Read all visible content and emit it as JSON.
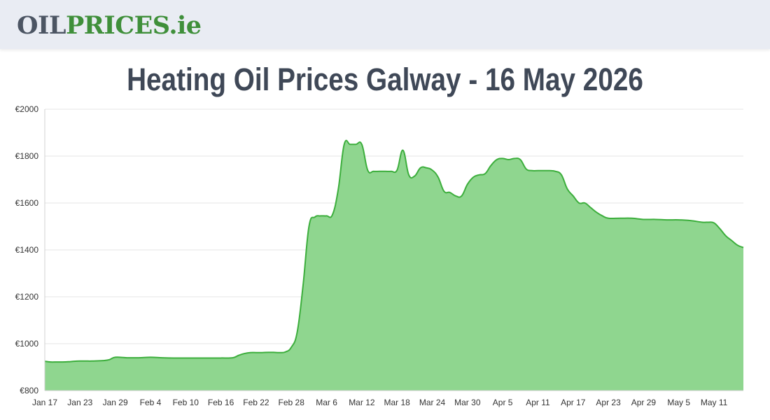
{
  "header": {
    "logo_part1": "OIL",
    "logo_part2": "PRICES",
    "logo_part3": ".ie"
  },
  "page": {
    "title": "Heating Oil Prices Galway - 16 May 2026"
  },
  "colors": {
    "header_bg": "#e9ecf3",
    "logo_gray": "#4c5563",
    "logo_green": "#3f8f3a",
    "line": "#3cae3c",
    "fill": "#8fd68f",
    "title": "#3f4857"
  },
  "chart_data": {
    "type": "area",
    "title": "",
    "xlabel": "",
    "ylabel": "",
    "ylim": [
      800,
      2000
    ],
    "y_ticks": [
      800,
      1000,
      1200,
      1400,
      1600,
      1800,
      2000
    ],
    "y_tick_labels": [
      "€800",
      "€1000",
      "€1200",
      "€1400",
      "€1600",
      "€1800",
      "€2000"
    ],
    "x_ticks": [
      {
        "day": 0,
        "label": "Jan 17"
      },
      {
        "day": 6,
        "label": "Jan 23"
      },
      {
        "day": 12,
        "label": "Jan 29"
      },
      {
        "day": 18,
        "label": "Feb 4"
      },
      {
        "day": 24,
        "label": "Feb 10"
      },
      {
        "day": 30,
        "label": "Feb 16"
      },
      {
        "day": 36,
        "label": "Feb 22"
      },
      {
        "day": 42,
        "label": "Feb 28"
      },
      {
        "day": 48,
        "label": "Mar 6"
      },
      {
        "day": 54,
        "label": "Mar 12"
      },
      {
        "day": 60,
        "label": "Mar 18"
      },
      {
        "day": 66,
        "label": "Mar 24"
      },
      {
        "day": 72,
        "label": "Mar 30"
      },
      {
        "day": 78,
        "label": "Apr 5"
      },
      {
        "day": 84,
        "label": "Apr 11"
      },
      {
        "day": 90,
        "label": "Apr 17"
      },
      {
        "day": 96,
        "label": "Apr 23"
      },
      {
        "day": 102,
        "label": "Apr 29"
      },
      {
        "day": 108,
        "label": "May 5"
      },
      {
        "day": 114,
        "label": "May 11"
      }
    ],
    "x_range": [
      0,
      119
    ],
    "grid": true,
    "legend": "none",
    "series": [
      {
        "x": [
          0,
          1,
          2,
          3,
          4,
          5,
          6,
          7,
          8,
          9,
          10,
          11,
          12,
          14,
          16,
          18,
          20,
          22,
          24,
          26,
          28,
          30,
          32,
          33,
          34,
          35,
          36,
          37,
          38,
          39,
          40,
          41,
          42,
          43,
          44,
          45,
          46,
          47,
          48,
          49,
          50,
          51,
          52,
          53,
          54,
          55,
          56,
          57,
          58,
          59,
          60,
          61,
          62,
          63,
          64,
          65,
          66,
          67,
          68,
          69,
          70,
          71,
          72,
          73,
          74,
          75,
          76,
          77,
          78,
          79,
          80,
          81,
          82,
          83,
          84,
          85,
          86,
          87,
          88,
          89,
          90,
          91,
          92,
          93,
          94,
          95,
          96,
          98,
          100,
          102,
          104,
          106,
          108,
          110,
          112,
          113,
          114,
          115,
          116,
          117,
          118,
          119
        ],
        "values": [
          925,
          922,
          922,
          922,
          923,
          925,
          926,
          926,
          926,
          927,
          928,
          932,
          942,
          940,
          940,
          942,
          940,
          939,
          939,
          939,
          939,
          939,
          940,
          950,
          958,
          962,
          962,
          962,
          963,
          963,
          962,
          965,
          985,
          1050,
          1250,
          1500,
          1540,
          1545,
          1545,
          1550,
          1660,
          1850,
          1850,
          1850,
          1850,
          1740,
          1735,
          1735,
          1735,
          1735,
          1740,
          1825,
          1720,
          1715,
          1750,
          1750,
          1740,
          1710,
          1650,
          1645,
          1630,
          1630,
          1680,
          1710,
          1720,
          1725,
          1760,
          1785,
          1790,
          1785,
          1790,
          1785,
          1745,
          1738,
          1738,
          1738,
          1738,
          1735,
          1720,
          1660,
          1630,
          1600,
          1600,
          1580,
          1560,
          1545,
          1535,
          1535,
          1535,
          1530,
          1530,
          1528,
          1528,
          1525,
          1518,
          1518,
          1515,
          1490,
          1460,
          1440,
          1420,
          1410
        ]
      }
    ]
  }
}
